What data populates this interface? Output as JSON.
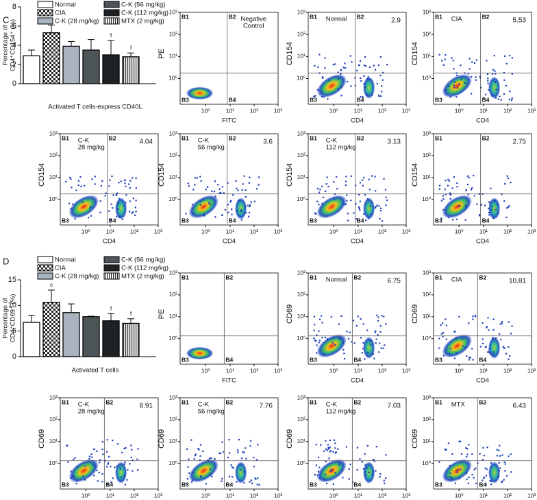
{
  "chart_data": [
    {
      "type": "bar",
      "panel": "C",
      "ylabel": [
        "Percentage of",
        "CD4⁺CD154⁺ (%)"
      ],
      "xlabel": "Activated T cells-express CD40L",
      "categories": [
        "Normal",
        "CIA",
        "C-K (28 mg/kg)",
        "C-K (56 mg/kg)",
        "C-K (112 mg/kg)",
        "MTX (2 mg/kg)"
      ],
      "values": [
        2.9,
        5.3,
        3.9,
        3.5,
        3.0,
        2.8
      ],
      "errors": [
        0.6,
        0.8,
        0.5,
        1.1,
        1.5,
        0.4
      ],
      "fills": [
        "#ffffff",
        "checker",
        "#a9b3c0",
        "#4d5559",
        "#1f2224",
        "stripes"
      ],
      "annotations": [
        {
          "category": "CIA",
          "text": "c"
        },
        {
          "category": "C-K (112 mg/kg)",
          "text": "f"
        },
        {
          "category": "MTX (2 mg/kg)",
          "text": "f"
        }
      ],
      "ylim": [
        0,
        8
      ],
      "yticks": [
        0,
        2,
        4,
        6,
        8
      ]
    },
    {
      "type": "bar",
      "panel": "D",
      "ylabel": [
        "Percentage of",
        "CD4⁺CD69⁺ (%)"
      ],
      "xlabel": "Activated T cells",
      "categories": [
        "Normal",
        "CIA",
        "C-K (28 mg/kg)",
        "C-K (56 mg/kg)",
        "C-K (112 mg/kg)",
        "MTX (2 mg/kg)"
      ],
      "values": [
        6.7,
        10.6,
        8.6,
        7.8,
        7.0,
        6.5
      ],
      "errors": [
        1.4,
        2.4,
        1.7,
        0.1,
        1.4,
        0.9
      ],
      "fills": [
        "#ffffff",
        "checker",
        "#a9b3c0",
        "#4d5559",
        "#1f2224",
        "stripes"
      ],
      "annotations": [
        {
          "category": "CIA",
          "text": "c"
        },
        {
          "category": "C-K (112 mg/kg)",
          "text": "f"
        },
        {
          "category": "MTX (2 mg/kg)",
          "text": "f"
        }
      ],
      "ylim": [
        0,
        15
      ],
      "yticks": [
        0,
        5,
        10,
        15
      ]
    }
  ],
  "log_ticks": [
    "10⁰",
    "10¹",
    "10²",
    "10³"
  ],
  "quadrant_labels": [
    "B1",
    "B2",
    "B3",
    "B4"
  ],
  "flow_plots": [
    {
      "ylabel": "PE",
      "xlabel": "FITC",
      "sample": [
        "Negative",
        "Control"
      ]
    },
    {
      "ylabel": "CD154",
      "xlabel": "CD4",
      "sample": [
        "Normal"
      ],
      "value": "2.9"
    },
    {
      "ylabel": "CD154",
      "xlabel": "CD4",
      "sample": [
        "CIA"
      ],
      "value": "5.53"
    },
    {
      "ylabel": "CD154",
      "xlabel": "CD4",
      "sample": [
        "C-K",
        "28 mg/kg"
      ],
      "value": "4.04"
    },
    {
      "ylabel": "CD154",
      "xlabel": "CD4",
      "sample": [
        "C-K",
        "56 mg/kg"
      ],
      "value": "3.6"
    },
    {
      "ylabel": "CD154",
      "xlabel": "CD4",
      "sample": [
        "C-K",
        "112 mg/kg"
      ],
      "value": "3.13"
    },
    {
      "ylabel": "CD154",
      "xlabel": "CD4",
      "value": "2.75"
    },
    {
      "ylabel": "PE",
      "xlabel": "FITC"
    },
    {
      "ylabel": "CD69",
      "xlabel": "CD4",
      "sample": [
        "Normal"
      ],
      "value": "6.75"
    },
    {
      "ylabel": "CD69",
      "xlabel": "CD4",
      "sample": [
        "CIA"
      ],
      "value": "10.81"
    },
    {
      "ylabel": "CD69",
      "xlabel": "CD4",
      "sample": [
        "C-K",
        "28 mg/kg"
      ],
      "value": "8.91"
    },
    {
      "ylabel": "CD69",
      "xlabel": "CD4",
      "sample": [
        "C-K",
        "56 mg/kg"
      ],
      "value": "7.76"
    },
    {
      "ylabel": "CD69",
      "xlabel": "CD4",
      "sample": [
        "C-K",
        "112 mg/kg"
      ],
      "value": "7.03"
    },
    {
      "ylabel": "CD69",
      "xlabel": "CD4",
      "sample": [
        "MTX"
      ],
      "value": "6.43"
    }
  ]
}
